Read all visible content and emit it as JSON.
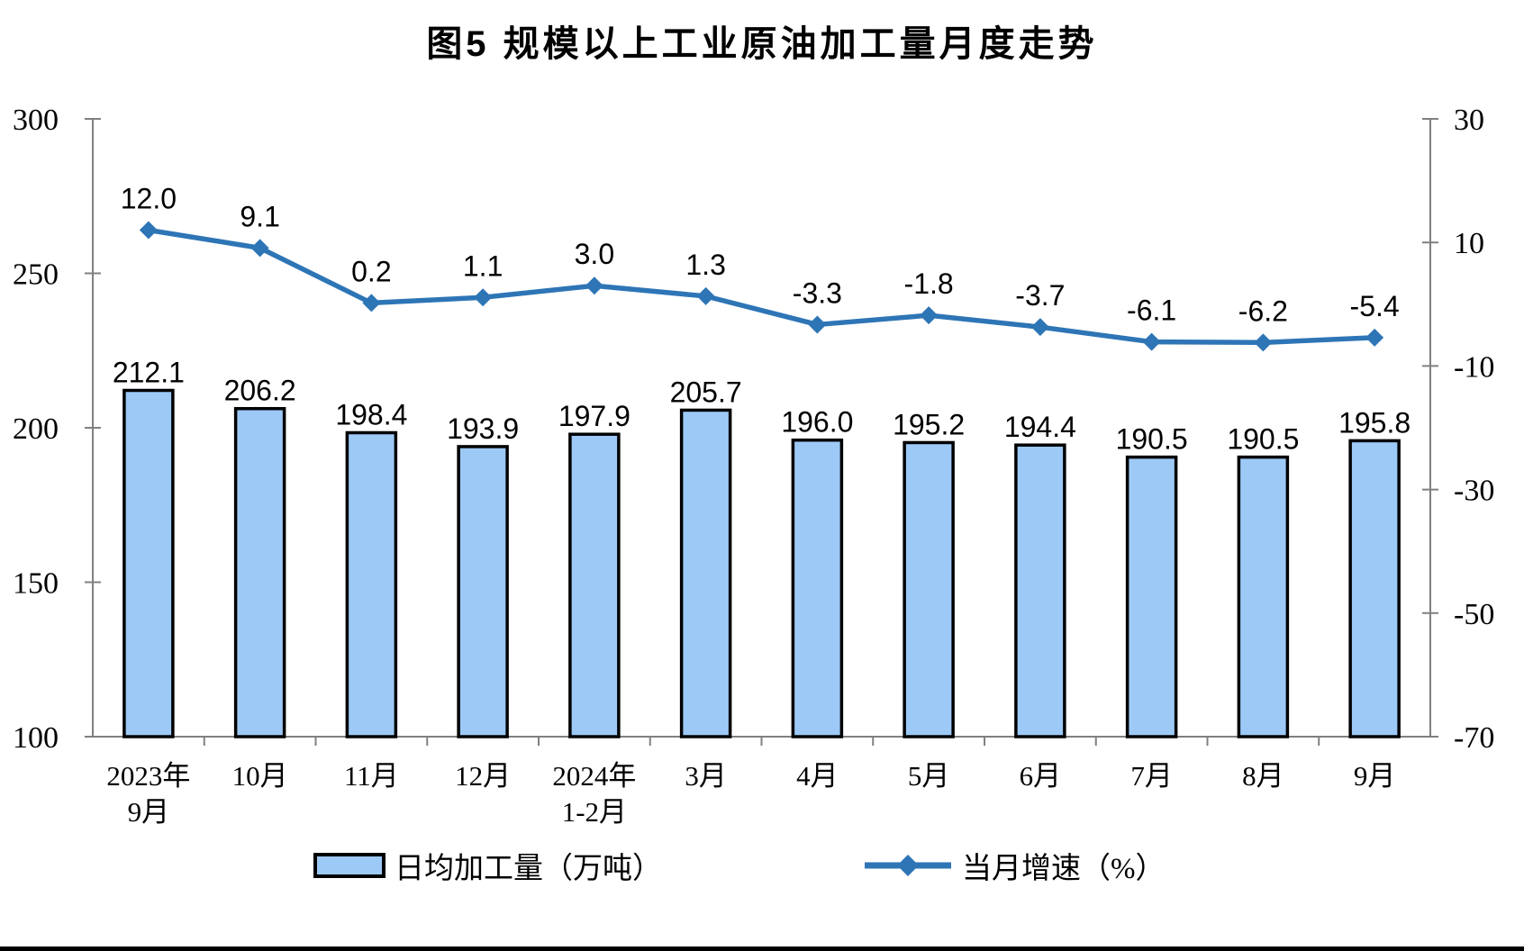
{
  "chart_data": {
    "type": "bar+line",
    "title": "图5  规模以上工业原油加工量月度走势",
    "categories": [
      [
        "2023年",
        "9月"
      ],
      [
        "10月"
      ],
      [
        "11月"
      ],
      [
        "12月"
      ],
      [
        "2024年",
        "1-2月"
      ],
      [
        "3月"
      ],
      [
        "4月"
      ],
      [
        "5月"
      ],
      [
        "6月"
      ],
      [
        "7月"
      ],
      [
        "8月"
      ],
      [
        "9月"
      ]
    ],
    "series": [
      {
        "name": "日均加工量（万吨）",
        "type": "bar",
        "axis": "left",
        "values": [
          212.1,
          206.2,
          198.4,
          193.9,
          197.9,
          205.7,
          196.0,
          195.2,
          194.4,
          190.5,
          190.5,
          195.8
        ],
        "labels": [
          "212.1",
          "206.2",
          "198.4",
          "193.9",
          "197.9",
          "205.7",
          "196.0",
          "195.2",
          "194.4",
          "190.5",
          "190.5",
          "195.8"
        ],
        "color": "#9DC9F7",
        "border_color": "#000000"
      },
      {
        "name": "当月增速（%）",
        "type": "line",
        "axis": "right",
        "values": [
          12.0,
          9.1,
          0.2,
          1.1,
          3.0,
          1.3,
          -3.3,
          -1.8,
          -3.7,
          -6.1,
          -6.2,
          -5.4
        ],
        "labels": [
          "12.0",
          "9.1",
          "0.2",
          "1.1",
          "3.0",
          "1.3",
          "-3.3",
          "-1.8",
          "-3.7",
          "-6.1",
          "-6.2",
          "-5.4"
        ],
        "color": "#2E75B6",
        "marker": "diamond"
      }
    ],
    "left_axis": {
      "min": 100,
      "max": 300,
      "ticks": [
        300,
        250,
        200,
        150,
        100
      ],
      "tick_labels": [
        "300",
        "250",
        "200",
        "150",
        "100"
      ]
    },
    "right_axis": {
      "min": -70,
      "max": 30,
      "ticks": [
        30,
        10,
        -10,
        -30,
        -50,
        -70
      ],
      "tick_labels": [
        "30",
        "10",
        "-10",
        "-30",
        "-50",
        "-70"
      ]
    },
    "axis_color": "#808080",
    "label_color": "#000000",
    "grid": false,
    "legend_position": "bottom"
  }
}
